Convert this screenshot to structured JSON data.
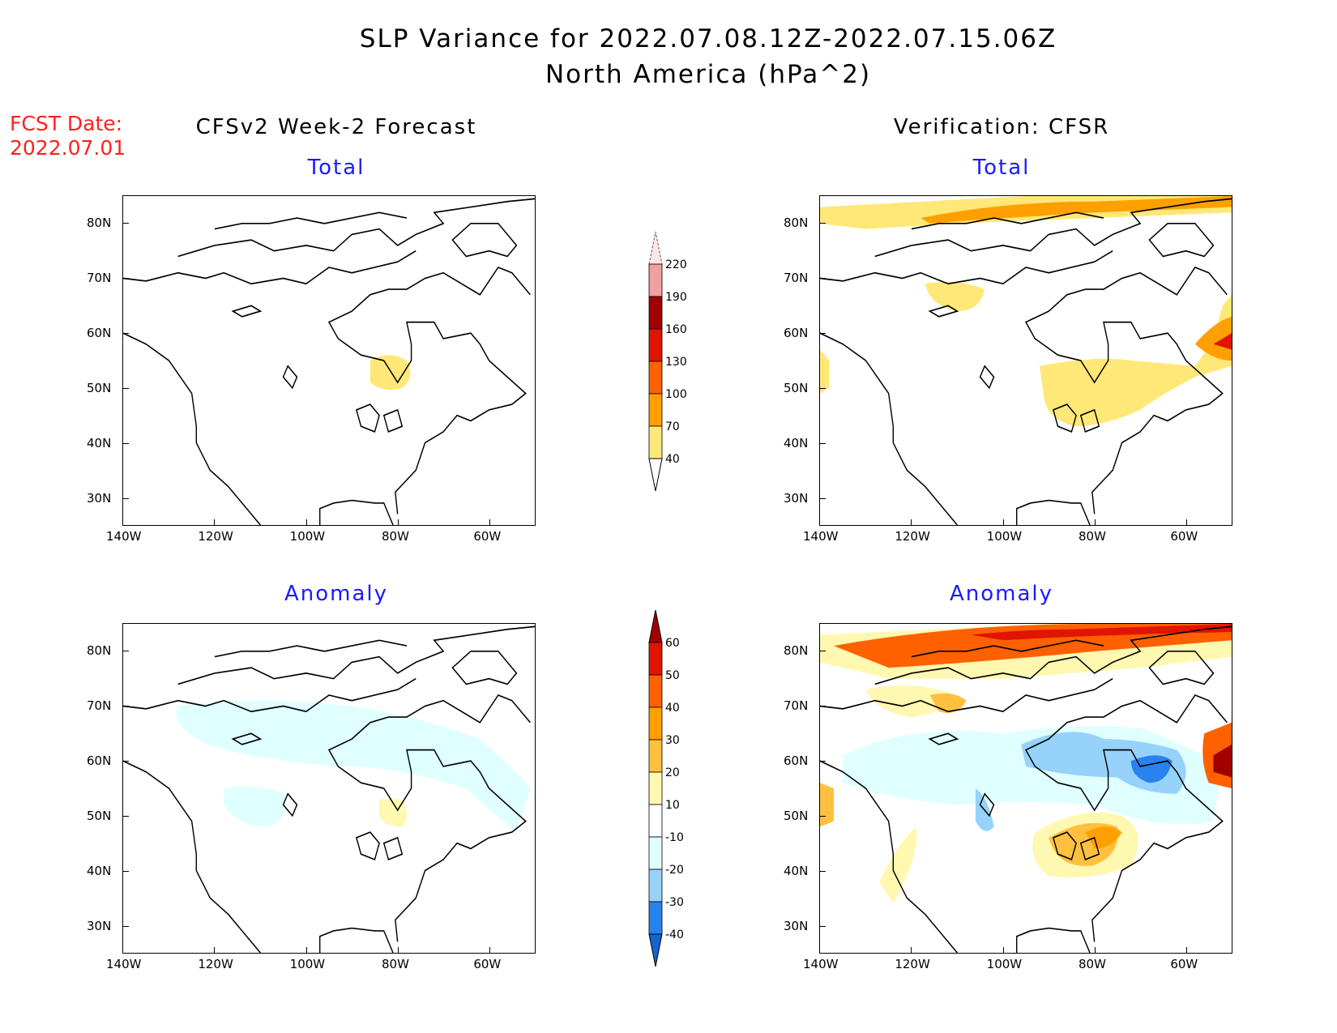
{
  "header": {
    "title_line1": "SLP Variance for 2022.07.08.12Z-2022.07.15.06Z",
    "title_line2": "North America (hPa^2)",
    "fcst_label": "FCST Date:",
    "fcst_date": "2022.07.01",
    "left_column": "CFSv2 Week-2 Forecast",
    "right_column": "Verification: CFSR"
  },
  "chart_data": [
    {
      "type": "heatmap",
      "title": "Total",
      "source": "CFSv2 Week-2 Forecast",
      "xlim": [
        -140,
        -50
      ],
      "ylim": [
        25,
        85
      ],
      "lon_ticks": [
        "140W",
        "120W",
        "100W",
        "80W",
        "60W"
      ],
      "lat_ticks": [
        "80N",
        "70N",
        "60N",
        "50N",
        "40N",
        "30N"
      ],
      "features": [
        {
          "level": "40-70",
          "lon": -82,
          "lat": 52
        }
      ]
    },
    {
      "type": "heatmap",
      "title": "Total",
      "source": "Verification: CFSR",
      "xlim": [
        -140,
        -50
      ],
      "ylim": [
        25,
        85
      ],
      "lon_ticks": [
        "140W",
        "120W",
        "100W",
        "80W",
        "60W"
      ],
      "lat_ticks": [
        "80N",
        "70N",
        "60N",
        "50N",
        "40N",
        "30N"
      ],
      "features": [
        {
          "level": "40-100",
          "region": "Arctic band 80-85N"
        },
        {
          "level": "40-70",
          "region": "Great Lakes / Quebec"
        },
        {
          "level": "40-130",
          "region": "Newfoundland offshore"
        }
      ]
    },
    {
      "type": "heatmap",
      "title": "Anomaly",
      "source": "CFSv2 Week-2 Forecast",
      "xlim": [
        -140,
        -50
      ],
      "ylim": [
        25,
        85
      ],
      "lon_ticks": [
        "140W",
        "120W",
        "100W",
        "80W",
        "60W"
      ],
      "lat_ticks": [
        "80N",
        "70N",
        "60N",
        "50N",
        "40N",
        "30N"
      ],
      "features": [
        {
          "level": "-20--10",
          "region": "Canada 55-68N"
        },
        {
          "level": "10-20",
          "lon": -81,
          "lat": 51
        }
      ]
    },
    {
      "type": "heatmap",
      "title": "Anomaly",
      "source": "Verification: CFSR",
      "xlim": [
        -140,
        -50
      ],
      "ylim": [
        25,
        85
      ],
      "lon_ticks": [
        "140W",
        "120W",
        "100W",
        "80W",
        "60W"
      ],
      "lat_ticks": [
        "80N",
        "70N",
        "60N",
        "50N",
        "40N",
        "30N"
      ],
      "features": [
        {
          "level": "20-60",
          "region": "Arctic band"
        },
        {
          "level": "-40--20",
          "region": "Hudson Bay / Quebec"
        },
        {
          "level": "20-40",
          "region": "Great Lakes"
        },
        {
          "level": "40-60",
          "region": "Newfoundland offshore"
        }
      ]
    }
  ],
  "colorbar_total": {
    "labels": [
      "220",
      "190",
      "160",
      "130",
      "100",
      "70",
      "40"
    ],
    "colors": [
      "#fde6e6",
      "#f0a0a0",
      "#a00000",
      "#e01400",
      "#ff6000",
      "#ffa000",
      "#ffe878"
    ]
  },
  "colorbar_anom": {
    "labels": [
      "60",
      "50",
      "40",
      "30",
      "20",
      "10",
      "-10",
      "-20",
      "-30",
      "-40"
    ],
    "colors": [
      "#a00000",
      "#e01400",
      "#ff6000",
      "#ffa000",
      "#ffc040",
      "#fff8b0",
      "#ffffff",
      "#e0ffff",
      "#96d2fa",
      "#2882f0",
      "#1464d2"
    ]
  }
}
